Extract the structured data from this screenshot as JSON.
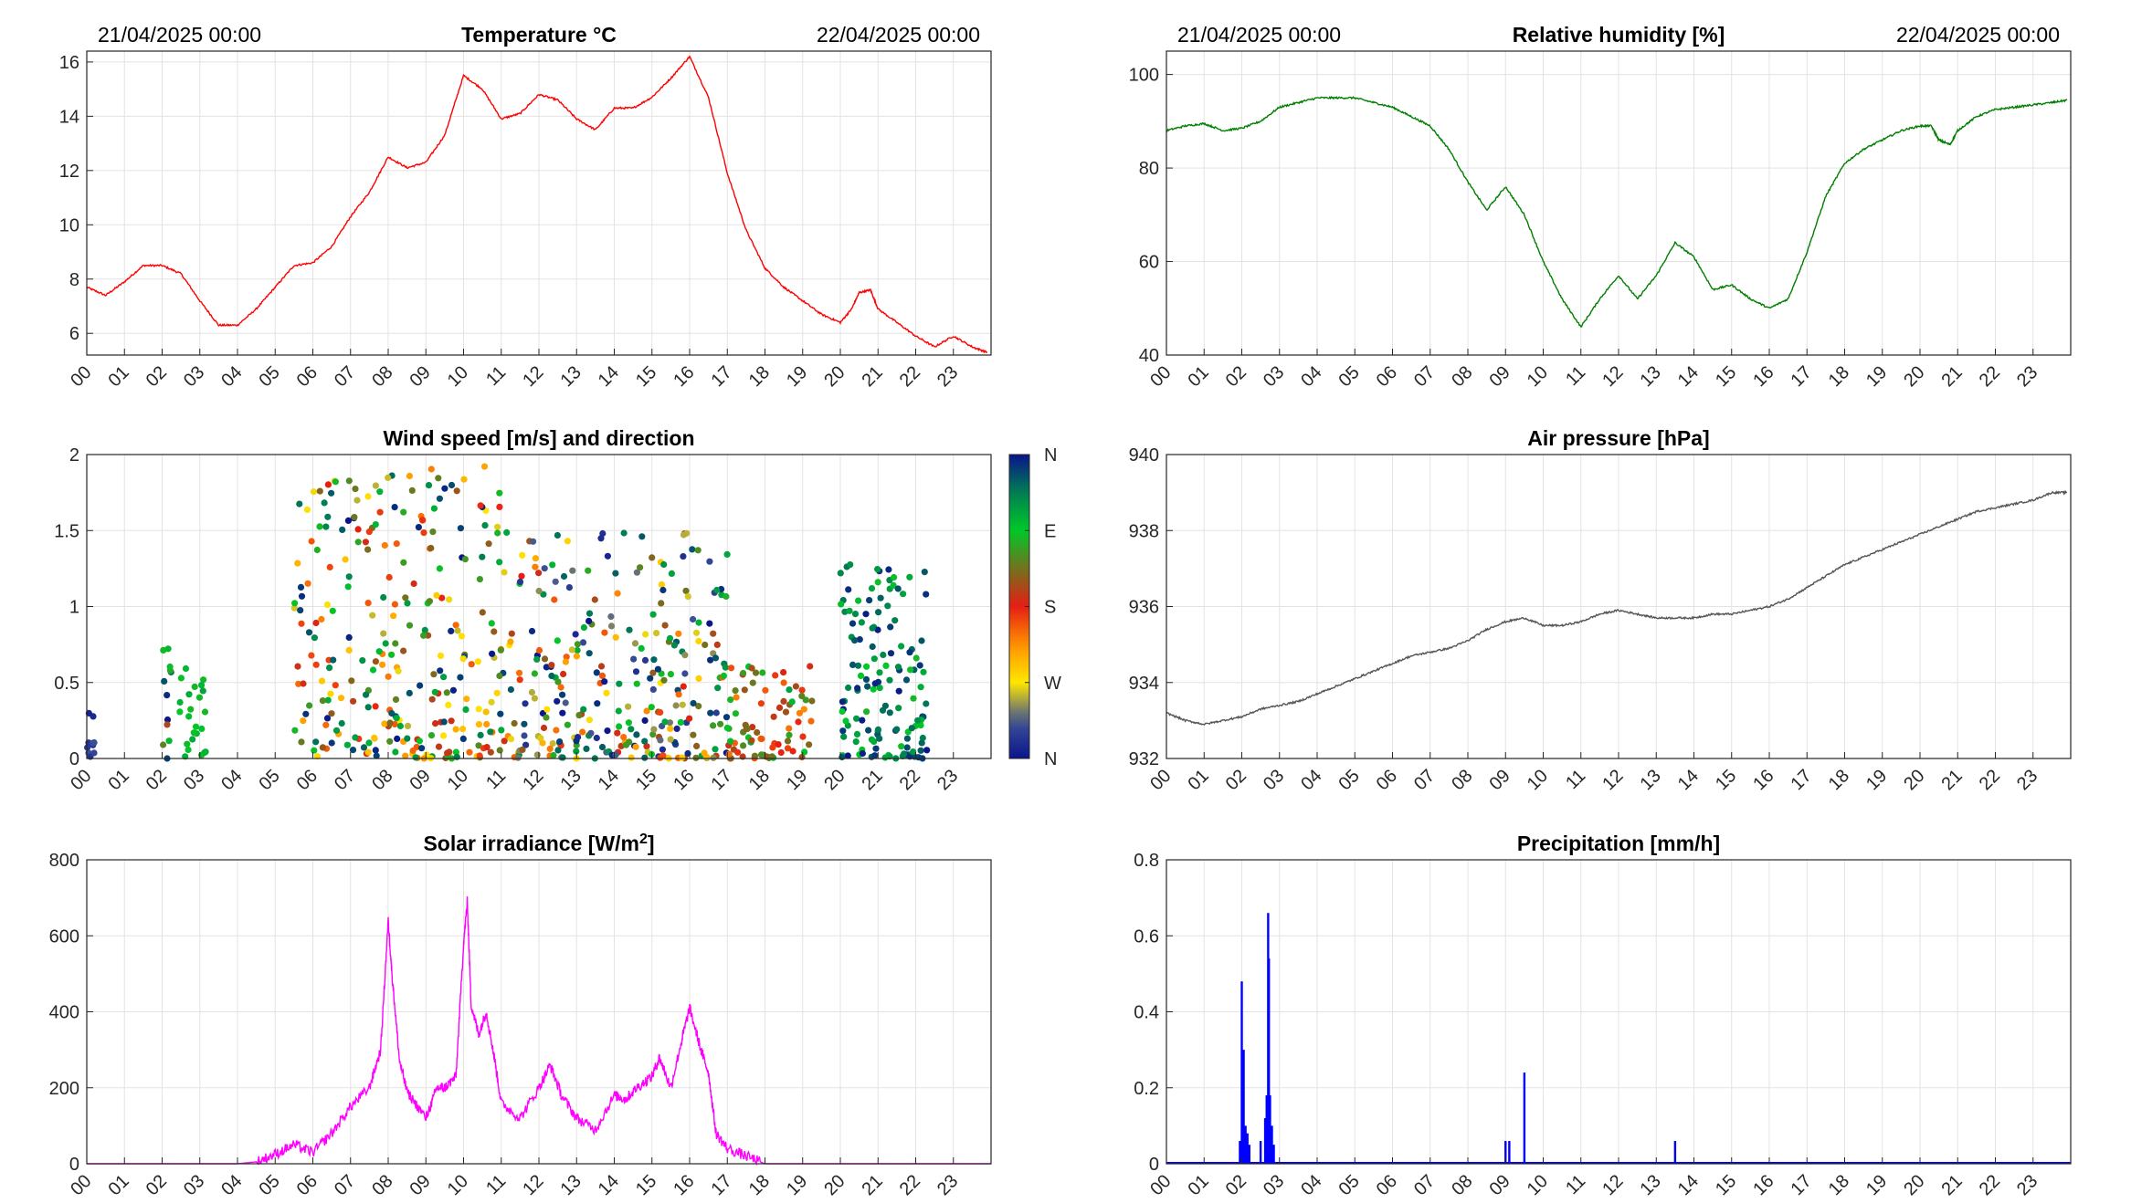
{
  "hour_labels": [
    "00",
    "01",
    "02",
    "03",
    "04",
    "05",
    "06",
    "07",
    "08",
    "09",
    "10",
    "11",
    "12",
    "13",
    "14",
    "15",
    "16",
    "17",
    "18",
    "19",
    "20",
    "21",
    "22",
    "23"
  ],
  "colorbar_labels": [
    "N",
    "W",
    "S",
    "E",
    "N"
  ],
  "chart_data": [
    {
      "id": "temperature",
      "type": "line",
      "title": "Temperature °C",
      "title_sup": "",
      "date_left": "21/04/2025 00:00",
      "date_right": "22/04/2025 00:00",
      "color": "#ff0000",
      "xlim": [
        0,
        24
      ],
      "ylim": [
        5.2,
        16.4
      ],
      "yticks": [
        6,
        8,
        10,
        12,
        14,
        16
      ],
      "ytick_labels": [
        "6",
        "8",
        "10",
        "12",
        "14",
        "16"
      ],
      "grid": true,
      "x": [
        0,
        0.5,
        1,
        1.5,
        2,
        2.5,
        3,
        3.5,
        4,
        4.5,
        5,
        5.5,
        6,
        6.5,
        7,
        7.5,
        8,
        8.5,
        9,
        9.5,
        10,
        10.5,
        11,
        11.5,
        12,
        12.5,
        13,
        13.5,
        14,
        14.5,
        15,
        15.5,
        16,
        16.5,
        17,
        17.5,
        18,
        18.5,
        19,
        19.5,
        20,
        20.3,
        20.5,
        20.8,
        21,
        21.5,
        22,
        22.5,
        23,
        23.5,
        23.9
      ],
      "y": [
        7.7,
        7.4,
        7.9,
        8.5,
        8.5,
        8.2,
        7.2,
        6.3,
        6.3,
        6.9,
        7.7,
        8.5,
        8.6,
        9.2,
        10.3,
        11.2,
        12.5,
        12.1,
        12.3,
        13.3,
        15.5,
        15,
        13.9,
        14.1,
        14.8,
        14.6,
        13.9,
        13.5,
        14.3,
        14.3,
        14.7,
        15.4,
        16.2,
        14.7,
        11.9,
        9.8,
        8.4,
        7.7,
        7.2,
        6.7,
        6.4,
        6.9,
        7.5,
        7.6,
        6.9,
        6.4,
        5.9,
        5.5,
        5.9,
        5.5,
        5.3
      ]
    },
    {
      "id": "humidity",
      "type": "line",
      "title": "Relative humidity [%]",
      "title_sup": "",
      "date_left": "21/04/2025 00:00",
      "date_right": "22/04/2025 00:00",
      "color": "#007f00",
      "xlim": [
        0,
        24
      ],
      "ylim": [
        40,
        105
      ],
      "yticks": [
        40,
        60,
        80,
        100
      ],
      "ytick_labels": [
        "40",
        "60",
        "80",
        "100"
      ],
      "grid": true,
      "x": [
        0,
        0.5,
        1,
        1.5,
        2,
        2.5,
        3,
        3.5,
        4,
        4.5,
        5,
        5.5,
        6,
        6.5,
        7,
        7.5,
        8,
        8.5,
        9,
        9.5,
        10,
        10.5,
        11,
        11.5,
        12,
        12.5,
        13,
        13.5,
        14,
        14.5,
        15,
        15.5,
        16,
        16.5,
        17,
        17.5,
        18,
        18.5,
        19,
        19.5,
        20,
        20.3,
        20.5,
        20.8,
        21,
        21.5,
        22,
        22.5,
        23,
        23.5,
        23.9
      ],
      "y": [
        88,
        89,
        89.5,
        88,
        88.5,
        90,
        93,
        94,
        95,
        95,
        95,
        94,
        93,
        91,
        89,
        84,
        77,
        71,
        76,
        70,
        60,
        52,
        46,
        52,
        57,
        52,
        57,
        64,
        61,
        54,
        55,
        52,
        50,
        52,
        62,
        74,
        81,
        84,
        86,
        88,
        89,
        89,
        86,
        85,
        88,
        91,
        92.5,
        93,
        93.5,
        94,
        94.5
      ]
    },
    {
      "id": "wind",
      "type": "scatter",
      "title": "Wind speed [m/s] and direction",
      "title_sup": "",
      "xlim": [
        0,
        24
      ],
      "ylim": [
        0,
        2
      ],
      "yticks": [
        0,
        0.5,
        1,
        1.5,
        2
      ],
      "ytick_labels": [
        "0",
        "0.5",
        "1",
        "1.5",
        "2"
      ],
      "grid": true,
      "colorbar": "direction N-E-S-W-N",
      "clusters": [
        {
          "from": 0,
          "to": 0.2,
          "max": 0.32,
          "n": 10,
          "hue_from": 0,
          "hue_to": 0.12
        },
        {
          "from": 1.95,
          "to": 2.25,
          "max": 0.74,
          "n": 12,
          "hue_from": 0.55,
          "hue_to": 1
        },
        {
          "from": 2.4,
          "to": 3.2,
          "max": 0.62,
          "n": 24,
          "hue_from": 0.72,
          "hue_to": 0.82
        },
        {
          "from": 5.5,
          "to": 11.2,
          "max": 1.93,
          "n": 280,
          "hue_from": 0.2,
          "hue_to": 1
        },
        {
          "from": 11.2,
          "to": 17,
          "max": 1.49,
          "n": 280,
          "hue_from": 0,
          "hue_to": 1
        },
        {
          "from": 17,
          "to": 19.3,
          "max": 0.62,
          "n": 80,
          "hue_from": 0.38,
          "hue_to": 0.82
        },
        {
          "from": 20,
          "to": 22.3,
          "max": 1.32,
          "n": 140,
          "hue_from": 0.72,
          "hue_to": 1
        }
      ]
    },
    {
      "id": "pressure",
      "type": "line",
      "title": "Air pressure [hPa]",
      "title_sup": "",
      "color": "#555555",
      "xlim": [
        0,
        24
      ],
      "ylim": [
        932,
        940
      ],
      "yticks": [
        932,
        934,
        936,
        938,
        940
      ],
      "ytick_labels": [
        "932",
        "934",
        "936",
        "938",
        "940"
      ],
      "grid": true,
      "x": [
        0,
        0.5,
        1,
        1.5,
        2,
        2.5,
        3,
        3.5,
        4,
        4.5,
        5,
        5.5,
        6,
        6.5,
        7,
        7.5,
        8,
        8.5,
        9,
        9.5,
        10,
        10.5,
        11,
        11.5,
        12,
        12.5,
        13,
        13.5,
        14,
        14.5,
        15,
        15.5,
        16,
        16.5,
        17,
        17.5,
        18,
        18.5,
        19,
        19.5,
        20,
        20.5,
        21,
        21.5,
        22,
        22.5,
        23,
        23.5,
        23.9
      ],
      "y": [
        933.2,
        933,
        932.9,
        933,
        933.1,
        933.3,
        933.4,
        933.5,
        933.7,
        933.9,
        934.1,
        934.3,
        934.5,
        934.7,
        934.8,
        934.9,
        935.1,
        935.4,
        935.6,
        935.7,
        935.5,
        935.5,
        935.6,
        935.8,
        935.9,
        935.8,
        935.7,
        935.7,
        935.7,
        935.8,
        935.8,
        935.9,
        936,
        936.2,
        936.5,
        936.8,
        937.1,
        937.3,
        937.5,
        937.7,
        937.9,
        938.1,
        938.3,
        938.5,
        938.6,
        938.7,
        938.8,
        939,
        939
      ]
    },
    {
      "id": "solar",
      "type": "area",
      "title": "Solar irradiance [W/m",
      "title_sup": "2",
      "title_suffix": "]",
      "color": "#ff00ff",
      "xlim": [
        0,
        24
      ],
      "ylim": [
        0,
        800
      ],
      "yticks": [
        0,
        200,
        400,
        600,
        800
      ],
      "ytick_labels": [
        "0",
        "200",
        "400",
        "600",
        "800"
      ],
      "grid": true,
      "x": [
        0,
        4,
        4.5,
        5,
        5.5,
        6,
        6.5,
        7,
        7.5,
        7.8,
        8,
        8.1,
        8.3,
        8.5,
        9,
        9.3,
        9.5,
        9.8,
        10,
        10.1,
        10.2,
        10.4,
        10.6,
        10.8,
        11,
        11.5,
        12,
        12.3,
        12.6,
        13,
        13.5,
        14,
        14.3,
        14.6,
        15,
        15.2,
        15.5,
        15.8,
        16,
        16.3,
        16.5,
        16.7,
        17,
        17.5,
        18,
        24
      ],
      "y": [
        0,
        0,
        5,
        25,
        50,
        30,
        80,
        150,
        200,
        300,
        640,
        500,
        270,
        190,
        120,
        200,
        200,
        230,
        580,
        690,
        420,
        340,
        400,
        290,
        160,
        120,
        200,
        260,
        180,
        120,
        90,
        180,
        170,
        200,
        230,
        280,
        200,
        330,
        410,
        300,
        240,
        80,
        40,
        20,
        0,
        0
      ]
    },
    {
      "id": "precipitation",
      "type": "bar",
      "title": "Precipitation [mm/h]",
      "title_sup": "",
      "color": "#0000ff",
      "xlim": [
        0,
        24
      ],
      "ylim": [
        0,
        0.8
      ],
      "yticks": [
        0,
        0.2,
        0.4,
        0.6,
        0.8
      ],
      "ytick_labels": [
        "0",
        "0.2",
        "0.4",
        "0.6",
        "0.8"
      ],
      "grid": true,
      "x": [
        1.95,
        2.0,
        2.05,
        2.1,
        2.15,
        2.2,
        2.5,
        2.62,
        2.66,
        2.7,
        2.72,
        2.75,
        2.8,
        2.85,
        9.0,
        9.1,
        9.5,
        13.5
      ],
      "y": [
        0.06,
        0.48,
        0.3,
        0.1,
        0.08,
        0.05,
        0.06,
        0.12,
        0.18,
        0.66,
        0.54,
        0.18,
        0.1,
        0.05,
        0.06,
        0.06,
        0.24,
        0.06
      ]
    }
  ]
}
